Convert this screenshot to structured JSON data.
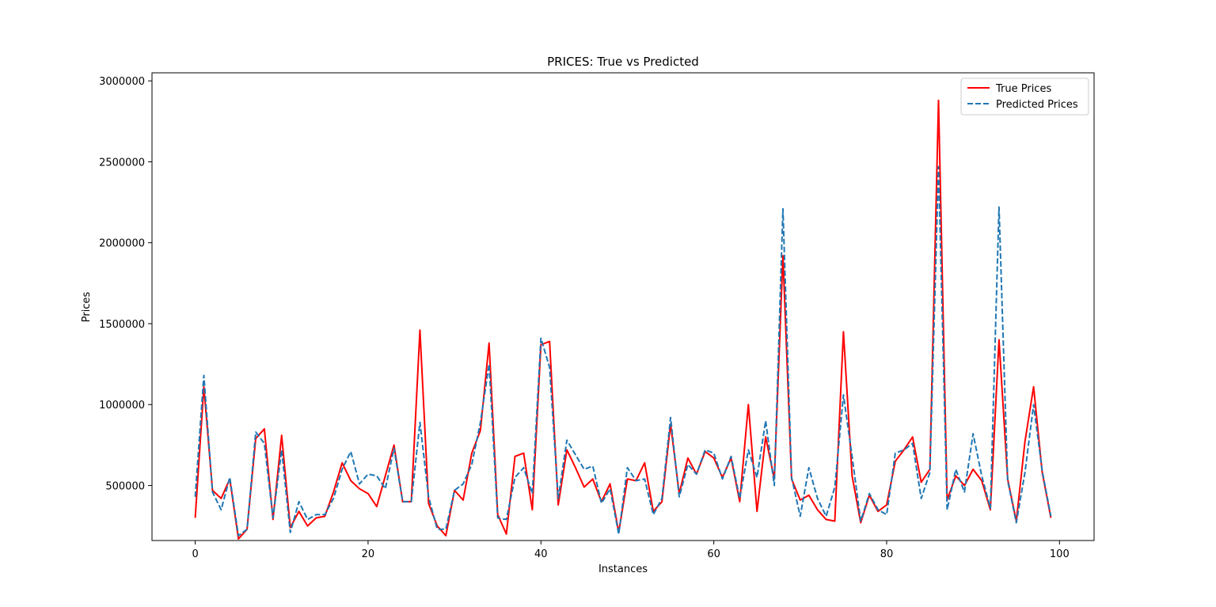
{
  "chart_data": {
    "type": "line",
    "title": "PRICES: True vs Predicted",
    "xlabel": "Instances",
    "ylabel": "Prices",
    "xlim": [
      -5,
      104
    ],
    "ylim": [
      160000,
      3050000
    ],
    "xticks": [
      0,
      20,
      40,
      60,
      80,
      100
    ],
    "yticks": [
      500000,
      1000000,
      1500000,
      2000000,
      2500000,
      3000000
    ],
    "xtick_labels": [
      "0",
      "20",
      "40",
      "60",
      "80",
      "100"
    ],
    "ytick_labels": [
      "500000",
      "1000000",
      "1500000",
      "2000000",
      "2500000",
      "3000000"
    ],
    "grid": false,
    "legend_position": "top-right",
    "series": [
      {
        "name": "True Prices",
        "color": "#ff0000",
        "style": "solid",
        "values": [
          300000,
          1110000,
          470000,
          420000,
          540000,
          170000,
          230000,
          790000,
          850000,
          290000,
          810000,
          240000,
          340000,
          250000,
          300000,
          310000,
          460000,
          640000,
          530000,
          480000,
          450000,
          370000,
          560000,
          750000,
          400000,
          400000,
          1460000,
          390000,
          250000,
          190000,
          470000,
          410000,
          700000,
          840000,
          1380000,
          320000,
          200000,
          680000,
          700000,
          350000,
          1370000,
          1390000,
          380000,
          720000,
          610000,
          490000,
          540000,
          400000,
          510000,
          210000,
          540000,
          530000,
          640000,
          340000,
          400000,
          880000,
          450000,
          670000,
          570000,
          710000,
          670000,
          550000,
          670000,
          400000,
          1000000,
          340000,
          800000,
          540000,
          1920000,
          540000,
          410000,
          440000,
          350000,
          290000,
          280000,
          1450000,
          560000,
          270000,
          440000,
          340000,
          380000,
          650000,
          720000,
          800000,
          520000,
          600000,
          2880000,
          410000,
          560000,
          500000,
          600000,
          530000,
          350000,
          1400000,
          540000,
          280000,
          770000,
          1110000,
          580000,
          300000
        ]
      },
      {
        "name": "Predicted Prices",
        "color": "#1f77b4",
        "style": "dashed",
        "values": [
          430000,
          1180000,
          460000,
          350000,
          550000,
          190000,
          230000,
          830000,
          760000,
          300000,
          720000,
          210000,
          400000,
          290000,
          320000,
          320000,
          420000,
          600000,
          710000,
          510000,
          570000,
          560000,
          480000,
          730000,
          400000,
          400000,
          890000,
          430000,
          230000,
          230000,
          470000,
          510000,
          630000,
          890000,
          1250000,
          300000,
          290000,
          550000,
          610000,
          450000,
          1410000,
          1230000,
          420000,
          780000,
          690000,
          600000,
          620000,
          390000,
          480000,
          200000,
          610000,
          530000,
          540000,
          320000,
          420000,
          920000,
          430000,
          630000,
          570000,
          720000,
          700000,
          540000,
          680000,
          420000,
          720000,
          550000,
          900000,
          500000,
          2210000,
          550000,
          310000,
          610000,
          420000,
          310000,
          490000,
          1060000,
          680000,
          280000,
          450000,
          350000,
          320000,
          700000,
          720000,
          760000,
          420000,
          580000,
          2470000,
          350000,
          600000,
          460000,
          820000,
          560000,
          360000,
          2220000,
          530000,
          270000,
          580000,
          1000000,
          590000,
          310000
        ]
      }
    ]
  }
}
